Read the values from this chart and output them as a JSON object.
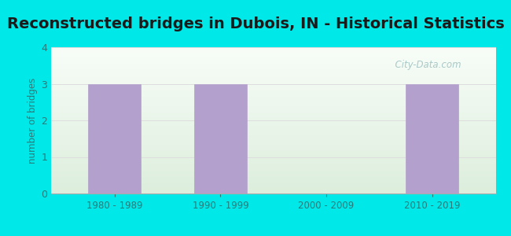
{
  "title": "Reconstructed bridges in Dubois, IN - Historical Statistics",
  "categories": [
    "1980 - 1989",
    "1990 - 1999",
    "2000 - 2009",
    "2010 - 2019"
  ],
  "values": [
    3,
    3,
    0,
    3
  ],
  "bar_color": "#b3a0cc",
  "bar_edge_color": "#b3a0cc",
  "ylabel": "number of bridges",
  "ylim": [
    0,
    4
  ],
  "yticks": [
    0,
    1,
    2,
    3,
    4
  ],
  "background_color": "#00e8e8",
  "plot_bg_top": "#eef5e8",
  "plot_bg_bottom": "#ddeedd",
  "title_fontsize": 14,
  "axis_label_color": "#2a7a7a",
  "tick_label_color": "#2a7a7a",
  "watermark": "  City-Data.com",
  "grid_color": "#dddddd"
}
